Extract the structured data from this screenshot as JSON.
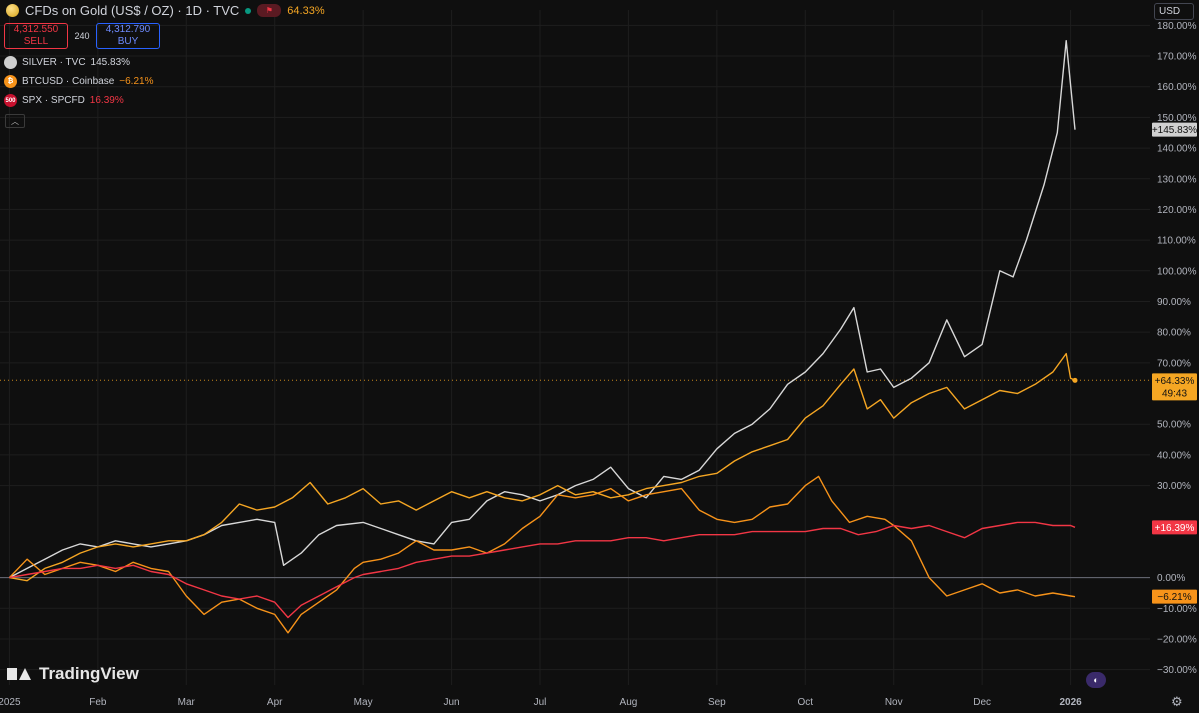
{
  "header": {
    "title": "CFDs on Gold (US$ / OZ) · 1D · TVC",
    "change": "64.33%"
  },
  "trade": {
    "sell_price": "4,312.550",
    "sell_label": "SELL",
    "spread": "240",
    "buy_price": "4,312.790",
    "buy_label": "BUY"
  },
  "legend": [
    {
      "label": "SILVER · TVC",
      "value": "145.83%",
      "color": "#e0e0e0",
      "icon_name": "silver-icon"
    },
    {
      "label": "BTCUSD · Coinbase",
      "value": "−6.21%",
      "color": "#f7931a",
      "icon_name": "bitcoin-icon",
      "icon_glyph": "₿"
    },
    {
      "label": "SPX · SPCFD",
      "value": "16.39%",
      "color": "#f23645",
      "icon_name": "spx-icon",
      "icon_glyph": "500"
    }
  ],
  "currency": "USD",
  "branding": "TradingView",
  "colors": {
    "gold": "#f5a623",
    "silver": "#d8d8d8",
    "btc": "#f7931a",
    "spx": "#f23645",
    "background": "#0f0f0f",
    "grid": "#1e1e1e"
  },
  "chart_data": {
    "type": "line",
    "ylim": [
      -35,
      185
    ],
    "y_ticks": [
      {
        "value": 180,
        "label": "180.00%"
      },
      {
        "value": 170,
        "label": "170.00%"
      },
      {
        "value": 160,
        "label": "160.00%"
      },
      {
        "value": 150,
        "label": "150.00%"
      },
      {
        "value": 140,
        "label": "140.00%"
      },
      {
        "value": 130,
        "label": "130.00%"
      },
      {
        "value": 120,
        "label": "120.00%"
      },
      {
        "value": 110,
        "label": "110.00%"
      },
      {
        "value": 100,
        "label": "100.00%"
      },
      {
        "value": 90,
        "label": "90.00%"
      },
      {
        "value": 80,
        "label": "80.00%"
      },
      {
        "value": 70,
        "label": "70.00%"
      },
      {
        "value": 50,
        "label": "50.00%"
      },
      {
        "value": 40,
        "label": "40.00%"
      },
      {
        "value": 30,
        "label": "30.00%"
      },
      {
        "value": 0,
        "label": "0.00%"
      },
      {
        "value": -10,
        "label": "−10.00%"
      },
      {
        "value": -20,
        "label": "−20.00%"
      },
      {
        "value": -30,
        "label": "−30.00%"
      }
    ],
    "x_ticks": [
      {
        "m": 0,
        "label": "2025"
      },
      {
        "m": 1,
        "label": "Feb"
      },
      {
        "m": 2,
        "label": "Mar"
      },
      {
        "m": 3,
        "label": "Apr"
      },
      {
        "m": 4,
        "label": "May"
      },
      {
        "m": 5,
        "label": "Jun"
      },
      {
        "m": 6,
        "label": "Jul"
      },
      {
        "m": 7,
        "label": "Aug"
      },
      {
        "m": 8,
        "label": "Sep"
      },
      {
        "m": 9,
        "label": "Oct"
      },
      {
        "m": 10,
        "label": "Nov"
      },
      {
        "m": 11,
        "label": "Dec"
      },
      {
        "m": 12,
        "label": "2026"
      }
    ],
    "x_range_months": [
      -0.05,
      12.05
    ],
    "zero_line": 0,
    "gold_reference": 64.33,
    "series": [
      {
        "name": "SILVER · TVC",
        "color": "#d8d8d8",
        "last_label": "+145.83%",
        "points": [
          [
            0,
            0
          ],
          [
            0.2,
            3
          ],
          [
            0.4,
            6
          ],
          [
            0.6,
            9
          ],
          [
            0.8,
            11
          ],
          [
            1,
            10
          ],
          [
            1.2,
            12
          ],
          [
            1.4,
            11
          ],
          [
            1.6,
            10
          ],
          [
            1.8,
            11
          ],
          [
            2,
            12
          ],
          [
            2.2,
            14
          ],
          [
            2.4,
            17
          ],
          [
            2.6,
            18
          ],
          [
            2.8,
            19
          ],
          [
            3,
            18
          ],
          [
            3.1,
            4
          ],
          [
            3.3,
            8
          ],
          [
            3.5,
            14
          ],
          [
            3.7,
            17
          ],
          [
            4,
            18
          ],
          [
            4.2,
            16
          ],
          [
            4.4,
            14
          ],
          [
            4.6,
            12
          ],
          [
            4.8,
            11
          ],
          [
            5,
            18
          ],
          [
            5.2,
            19
          ],
          [
            5.4,
            25
          ],
          [
            5.6,
            28
          ],
          [
            5.8,
            27
          ],
          [
            6,
            25
          ],
          [
            6.2,
            27
          ],
          [
            6.4,
            30
          ],
          [
            6.6,
            32
          ],
          [
            6.8,
            36
          ],
          [
            7,
            29
          ],
          [
            7.2,
            26
          ],
          [
            7.4,
            33
          ],
          [
            7.6,
            32
          ],
          [
            7.8,
            35
          ],
          [
            8,
            42
          ],
          [
            8.2,
            47
          ],
          [
            8.4,
            50
          ],
          [
            8.6,
            55
          ],
          [
            8.8,
            63
          ],
          [
            9,
            67
          ],
          [
            9.2,
            73
          ],
          [
            9.4,
            81
          ],
          [
            9.55,
            88
          ],
          [
            9.7,
            67
          ],
          [
            9.85,
            68
          ],
          [
            10,
            62
          ],
          [
            10.2,
            65
          ],
          [
            10.4,
            70
          ],
          [
            10.6,
            84
          ],
          [
            10.8,
            72
          ],
          [
            11,
            76
          ],
          [
            11.2,
            100
          ],
          [
            11.35,
            98
          ],
          [
            11.5,
            110
          ],
          [
            11.7,
            128
          ],
          [
            11.85,
            145
          ],
          [
            11.95,
            175
          ],
          [
            12.05,
            146
          ]
        ]
      },
      {
        "name": "CFDs on Gold (US$ / OZ) · 1D · TVC",
        "color": "#f5a623",
        "last_label": "+64.33%",
        "last_time": "49:43",
        "points": [
          [
            0,
            0
          ],
          [
            0.2,
            -1
          ],
          [
            0.4,
            3
          ],
          [
            0.6,
            5
          ],
          [
            0.8,
            8
          ],
          [
            1,
            10
          ],
          [
            1.2,
            11
          ],
          [
            1.4,
            10
          ],
          [
            1.6,
            11
          ],
          [
            1.8,
            12
          ],
          [
            2,
            12
          ],
          [
            2.2,
            14
          ],
          [
            2.4,
            18
          ],
          [
            2.6,
            24
          ],
          [
            2.8,
            22
          ],
          [
            3,
            23
          ],
          [
            3.2,
            26
          ],
          [
            3.4,
            31
          ],
          [
            3.6,
            24
          ],
          [
            3.8,
            26
          ],
          [
            4,
            29
          ],
          [
            4.2,
            24
          ],
          [
            4.4,
            25
          ],
          [
            4.6,
            22
          ],
          [
            4.8,
            25
          ],
          [
            5,
            28
          ],
          [
            5.2,
            26
          ],
          [
            5.4,
            28
          ],
          [
            5.6,
            26
          ],
          [
            5.8,
            25
          ],
          [
            6,
            27
          ],
          [
            6.2,
            30
          ],
          [
            6.4,
            27
          ],
          [
            6.6,
            28
          ],
          [
            6.8,
            26
          ],
          [
            7,
            27
          ],
          [
            7.2,
            29
          ],
          [
            7.4,
            30
          ],
          [
            7.6,
            31
          ],
          [
            7.8,
            33
          ],
          [
            8,
            34
          ],
          [
            8.2,
            38
          ],
          [
            8.4,
            41
          ],
          [
            8.6,
            43
          ],
          [
            8.8,
            45
          ],
          [
            9,
            52
          ],
          [
            9.2,
            56
          ],
          [
            9.4,
            63
          ],
          [
            9.55,
            68
          ],
          [
            9.7,
            55
          ],
          [
            9.85,
            58
          ],
          [
            10,
            52
          ],
          [
            10.2,
            57
          ],
          [
            10.4,
            60
          ],
          [
            10.6,
            62
          ],
          [
            10.8,
            55
          ],
          [
            11,
            58
          ],
          [
            11.2,
            61
          ],
          [
            11.4,
            60
          ],
          [
            11.6,
            63
          ],
          [
            11.8,
            67
          ],
          [
            11.95,
            73
          ],
          [
            12,
            65
          ],
          [
            12.05,
            64.3
          ]
        ]
      },
      {
        "name": "BTCUSD · Coinbase",
        "color": "#f7931a",
        "last_label": "−6.21%",
        "points": [
          [
            0,
            0
          ],
          [
            0.2,
            6
          ],
          [
            0.4,
            1
          ],
          [
            0.6,
            3
          ],
          [
            0.8,
            5
          ],
          [
            1,
            4
          ],
          [
            1.2,
            2
          ],
          [
            1.4,
            5
          ],
          [
            1.6,
            3
          ],
          [
            1.8,
            2
          ],
          [
            2,
            -6
          ],
          [
            2.2,
            -12
          ],
          [
            2.4,
            -8
          ],
          [
            2.6,
            -7
          ],
          [
            2.8,
            -10
          ],
          [
            3,
            -12
          ],
          [
            3.15,
            -18
          ],
          [
            3.3,
            -12
          ],
          [
            3.5,
            -8
          ],
          [
            3.7,
            -4
          ],
          [
            3.9,
            3
          ],
          [
            4,
            5
          ],
          [
            4.2,
            6
          ],
          [
            4.4,
            8
          ],
          [
            4.6,
            12
          ],
          [
            4.8,
            9
          ],
          [
            5,
            9
          ],
          [
            5.2,
            10
          ],
          [
            5.4,
            8
          ],
          [
            5.6,
            11
          ],
          [
            5.8,
            16
          ],
          [
            6,
            20
          ],
          [
            6.2,
            27
          ],
          [
            6.4,
            26
          ],
          [
            6.6,
            27
          ],
          [
            6.8,
            29
          ],
          [
            7,
            25
          ],
          [
            7.2,
            27
          ],
          [
            7.4,
            28
          ],
          [
            7.6,
            29
          ],
          [
            7.8,
            22
          ],
          [
            8,
            19
          ],
          [
            8.2,
            18
          ],
          [
            8.4,
            19
          ],
          [
            8.6,
            23
          ],
          [
            8.8,
            24
          ],
          [
            9,
            30
          ],
          [
            9.15,
            33
          ],
          [
            9.3,
            25
          ],
          [
            9.5,
            18
          ],
          [
            9.7,
            20
          ],
          [
            9.9,
            19
          ],
          [
            10,
            17
          ],
          [
            10.2,
            12
          ],
          [
            10.4,
            0
          ],
          [
            10.6,
            -6
          ],
          [
            10.8,
            -4
          ],
          [
            11,
            -2
          ],
          [
            11.2,
            -5
          ],
          [
            11.4,
            -4
          ],
          [
            11.6,
            -6
          ],
          [
            11.8,
            -5
          ],
          [
            12,
            -6
          ],
          [
            12.05,
            -6.21
          ]
        ]
      },
      {
        "name": "SPX · SPCFD",
        "color": "#f23645",
        "last_label": "+16.39%",
        "points": [
          [
            0,
            0
          ],
          [
            0.2,
            1
          ],
          [
            0.4,
            2
          ],
          [
            0.6,
            3
          ],
          [
            0.8,
            3
          ],
          [
            1,
            4
          ],
          [
            1.2,
            3
          ],
          [
            1.4,
            4
          ],
          [
            1.6,
            2
          ],
          [
            1.8,
            1
          ],
          [
            2,
            -2
          ],
          [
            2.2,
            -4
          ],
          [
            2.4,
            -6
          ],
          [
            2.6,
            -7
          ],
          [
            2.8,
            -6
          ],
          [
            3,
            -8
          ],
          [
            3.15,
            -13
          ],
          [
            3.3,
            -9
          ],
          [
            3.5,
            -6
          ],
          [
            3.7,
            -3
          ],
          [
            3.9,
            0
          ],
          [
            4,
            1
          ],
          [
            4.2,
            2
          ],
          [
            4.4,
            3
          ],
          [
            4.6,
            5
          ],
          [
            4.8,
            6
          ],
          [
            5,
            7
          ],
          [
            5.2,
            7
          ],
          [
            5.4,
            8
          ],
          [
            5.6,
            9
          ],
          [
            5.8,
            10
          ],
          [
            6,
            11
          ],
          [
            6.2,
            11
          ],
          [
            6.4,
            12
          ],
          [
            6.6,
            12
          ],
          [
            6.8,
            12
          ],
          [
            7,
            13
          ],
          [
            7.2,
            13
          ],
          [
            7.4,
            12
          ],
          [
            7.6,
            13
          ],
          [
            7.8,
            14
          ],
          [
            8,
            14
          ],
          [
            8.2,
            14
          ],
          [
            8.4,
            15
          ],
          [
            8.6,
            15
          ],
          [
            8.8,
            15
          ],
          [
            9,
            15
          ],
          [
            9.2,
            16
          ],
          [
            9.4,
            16
          ],
          [
            9.6,
            14
          ],
          [
            9.8,
            15
          ],
          [
            10,
            17
          ],
          [
            10.2,
            16
          ],
          [
            10.4,
            17
          ],
          [
            10.6,
            15
          ],
          [
            10.8,
            13
          ],
          [
            11,
            16
          ],
          [
            11.2,
            17
          ],
          [
            11.4,
            18
          ],
          [
            11.6,
            18
          ],
          [
            11.8,
            17
          ],
          [
            12,
            17
          ],
          [
            12.05,
            16.39
          ]
        ]
      }
    ]
  }
}
